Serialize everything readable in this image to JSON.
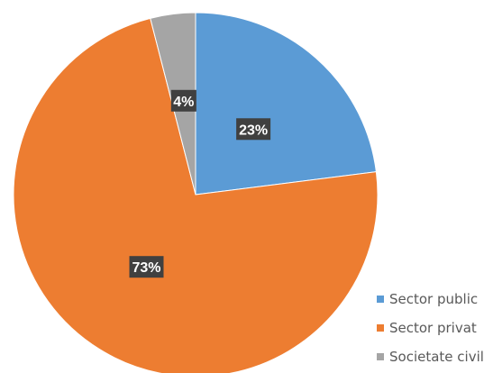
{
  "chart_data": {
    "type": "pie",
    "categories": [
      "Sector public",
      "Sector privat",
      "Societate civilă"
    ],
    "values": [
      23,
      73,
      4
    ],
    "data_labels": [
      "23%",
      "73%",
      "4%"
    ],
    "colors": [
      "#5b9bd5",
      "#ed7d31",
      "#a5a5a5"
    ],
    "start_angle_deg": 0,
    "direction": "clockwise",
    "legend_placement": "bottom-right",
    "title": ""
  },
  "legend": {
    "items": [
      {
        "label": "Sector public",
        "color": "#5b9bd5"
      },
      {
        "label": "Sector privat",
        "color": "#ed7d31"
      },
      {
        "label": "Societate civila",
        "color": "#a5a5a5"
      }
    ]
  }
}
